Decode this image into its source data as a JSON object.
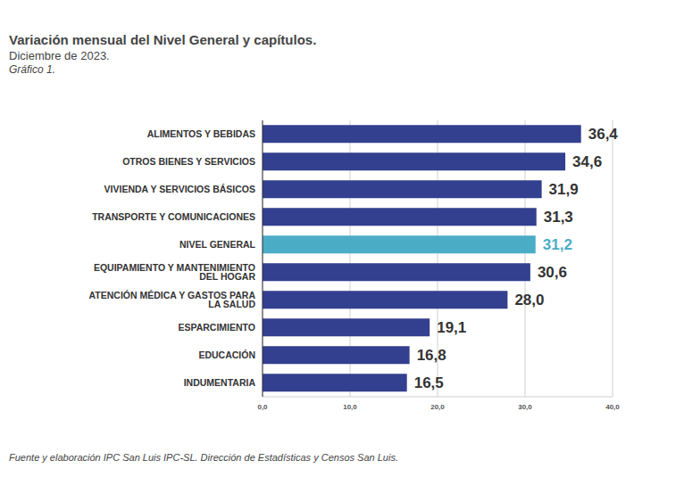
{
  "chart_data": {
    "type": "bar",
    "title": "Variación mensual del Nivel General y capítulos.",
    "subtitle": "Diciembre de 2023.",
    "annotations": [
      "Gráfico 1.",
      "Fuente y elaboración IPC San Luis IPC-SL. Dirección de Estadísticas y Censos San Luis."
    ],
    "orientation": "horizontal",
    "categories": [
      "ALIMENTOS Y BEBIDAS",
      "OTROS BIENES Y SERVICIOS",
      "VIVIENDA Y SERVICIOS BÁSICOS",
      "TRANSPORTE Y COMUNICACIONES",
      "NIVEL GENERAL",
      "EQUIPAMIENTO Y MANTENIMIENTO DEL HOGAR",
      "ATENCIÓN MÉDICA Y GASTOS PARA LA SALUD",
      "ESPARCIMIENTO",
      "EDUCACIÓN",
      "INDUMENTARIA"
    ],
    "values": [
      36.4,
      34.6,
      31.9,
      31.3,
      31.2,
      30.6,
      28.0,
      19.1,
      16.8,
      16.5
    ],
    "value_labels": [
      "36,4",
      "34,6",
      "31,9",
      "31,3",
      "31,2",
      "30,6",
      "28,0",
      "19,1",
      "16,8",
      "16,5"
    ],
    "colors": [
      "#333f8f",
      "#333f8f",
      "#333f8f",
      "#333f8f",
      "#4bacc6",
      "#333f8f",
      "#333f8f",
      "#333f8f",
      "#333f8f",
      "#333f8f"
    ],
    "xlim": [
      0,
      40
    ],
    "xticks": [
      {
        "value": 0,
        "label": "0,0"
      },
      {
        "value": 10,
        "label": "10,0"
      },
      {
        "value": 20,
        "label": "20,0"
      },
      {
        "value": 30,
        "label": "30,0"
      },
      {
        "value": 40,
        "label": "40,0"
      }
    ],
    "grid": true,
    "data_labels": true
  }
}
